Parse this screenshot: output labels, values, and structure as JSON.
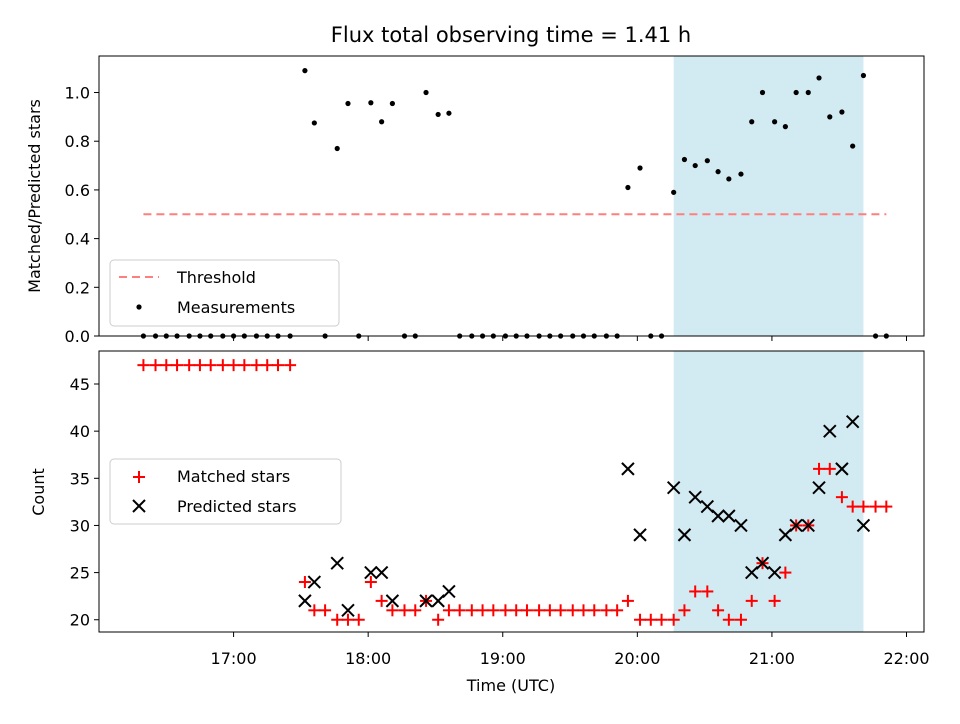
{
  "title": "Flux total observing time = 1.41 h",
  "shaded_region": {
    "start_hour": 20.27,
    "end_hour": 21.68,
    "color": "#add8e6"
  },
  "chart_data": [
    {
      "type": "scatter",
      "ylabel": "Matched/Predicted stars",
      "ylim": [
        0,
        1.15
      ],
      "yticks": [
        "0.0",
        "0.2",
        "0.4",
        "0.6",
        "0.8",
        "1.0"
      ],
      "threshold": {
        "name": "Threshold",
        "value": 0.5,
        "x_range": [
          16.33,
          21.85
        ],
        "color": "#ff7f7f"
      },
      "legend": {
        "position": "bottom-left",
        "entries": [
          "Threshold",
          "Measurements"
        ]
      },
      "series": [
        {
          "name": "Measurements",
          "marker": "dot",
          "color": "#000000",
          "x": [
            16.33,
            16.42,
            16.5,
            16.58,
            16.67,
            16.75,
            16.83,
            16.92,
            17.0,
            17.08,
            17.17,
            17.25,
            17.33,
            17.42,
            17.53,
            17.6,
            17.68,
            17.77,
            17.85,
            17.93,
            18.02,
            18.1,
            18.18,
            18.27,
            18.35,
            18.43,
            18.52,
            18.6,
            18.68,
            18.77,
            18.85,
            18.93,
            19.02,
            19.1,
            19.18,
            19.27,
            19.35,
            19.43,
            19.52,
            19.6,
            19.68,
            19.77,
            19.85,
            19.93,
            20.02,
            20.1,
            20.18,
            20.27,
            20.35,
            20.43,
            20.52,
            20.6,
            20.68,
            20.77,
            20.85,
            20.93,
            21.02,
            21.1,
            21.18,
            21.27,
            21.35,
            21.43,
            21.52,
            21.6,
            21.68,
            21.77,
            21.85
          ],
          "y": [
            0,
            0,
            0,
            0,
            0,
            0,
            0,
            0,
            0,
            0,
            0,
            0,
            0,
            0,
            1.09,
            0.875,
            0,
            0.77,
            0.955,
            0,
            0.958,
            0.88,
            0.955,
            0,
            0,
            1.0,
            0.91,
            0.915,
            0,
            0,
            0,
            0,
            0,
            0,
            0,
            0,
            0,
            0,
            0,
            0,
            0,
            0,
            0,
            0.61,
            0.69,
            0,
            0,
            0.59,
            0.725,
            0.7,
            0.72,
            0.675,
            0.645,
            0.665,
            0.88,
            1.0,
            0.88,
            0.86,
            1.0,
            1.0,
            1.06,
            0.9,
            0.92,
            0.78,
            1.07,
            0,
            0
          ]
        }
      ]
    },
    {
      "type": "scatter",
      "xlabel": "Time (UTC)",
      "ylabel": "Count",
      "ylim": [
        18.7,
        48.5
      ],
      "yticks": [
        "20",
        "25",
        "30",
        "35",
        "40",
        "45"
      ],
      "xlim": [
        16.0,
        22.13
      ],
      "xticks": [
        {
          "hour": 17,
          "label": "17:00"
        },
        {
          "hour": 18,
          "label": "18:00"
        },
        {
          "hour": 19,
          "label": "19:00"
        },
        {
          "hour": 20,
          "label": "20:00"
        },
        {
          "hour": 21,
          "label": "21:00"
        },
        {
          "hour": 22,
          "label": "22:00"
        }
      ],
      "legend": {
        "position": "center-left",
        "entries": [
          "Matched stars",
          "Predicted stars"
        ]
      },
      "series": [
        {
          "name": "Matched stars",
          "marker": "plus",
          "color": "#ff0000",
          "x": [
            16.33,
            16.42,
            16.5,
            16.58,
            16.67,
            16.75,
            16.83,
            16.92,
            17.0,
            17.08,
            17.17,
            17.25,
            17.33,
            17.42,
            17.53,
            17.6,
            17.68,
            17.77,
            17.85,
            17.93,
            18.02,
            18.1,
            18.18,
            18.27,
            18.35,
            18.43,
            18.52,
            18.6,
            18.68,
            18.77,
            18.85,
            18.93,
            19.02,
            19.1,
            19.18,
            19.27,
            19.35,
            19.43,
            19.52,
            19.6,
            19.68,
            19.77,
            19.85,
            19.93,
            20.02,
            20.1,
            20.18,
            20.27,
            20.35,
            20.43,
            20.52,
            20.6,
            20.68,
            20.77,
            20.85,
            20.93,
            21.02,
            21.1,
            21.18,
            21.27,
            21.35,
            21.43,
            21.52,
            21.6,
            21.68,
            21.77,
            21.85
          ],
          "y": [
            47,
            47,
            47,
            47,
            47,
            47,
            47,
            47,
            47,
            47,
            47,
            47,
            47,
            47,
            24,
            21,
            21,
            20,
            20,
            20,
            24,
            22,
            21,
            21,
            21,
            22,
            20,
            21,
            21,
            21,
            21,
            21,
            21,
            21,
            21,
            21,
            21,
            21,
            21,
            21,
            21,
            21,
            21,
            22,
            20,
            20,
            20,
            20,
            21,
            23,
            23,
            21,
            20,
            20,
            22,
            26,
            22,
            25,
            30,
            30,
            36,
            36,
            33,
            32,
            32,
            32,
            32
          ]
        },
        {
          "name": "Predicted stars",
          "marker": "x",
          "color": "#000000",
          "x": [
            17.53,
            17.6,
            17.77,
            17.85,
            18.02,
            18.1,
            18.18,
            18.43,
            18.52,
            18.6,
            19.93,
            20.02,
            20.27,
            20.35,
            20.43,
            20.52,
            20.6,
            20.68,
            20.77,
            20.85,
            20.93,
            21.02,
            21.1,
            21.18,
            21.27,
            21.35,
            21.43,
            21.52,
            21.6,
            21.68
          ],
          "y": [
            22,
            24,
            26,
            21,
            25,
            25,
            22,
            22,
            22,
            23,
            36,
            29,
            34,
            29,
            33,
            32,
            31,
            31,
            30,
            25,
            26,
            25,
            29,
            30,
            30,
            34,
            40,
            36,
            41,
            30
          ]
        }
      ]
    }
  ]
}
